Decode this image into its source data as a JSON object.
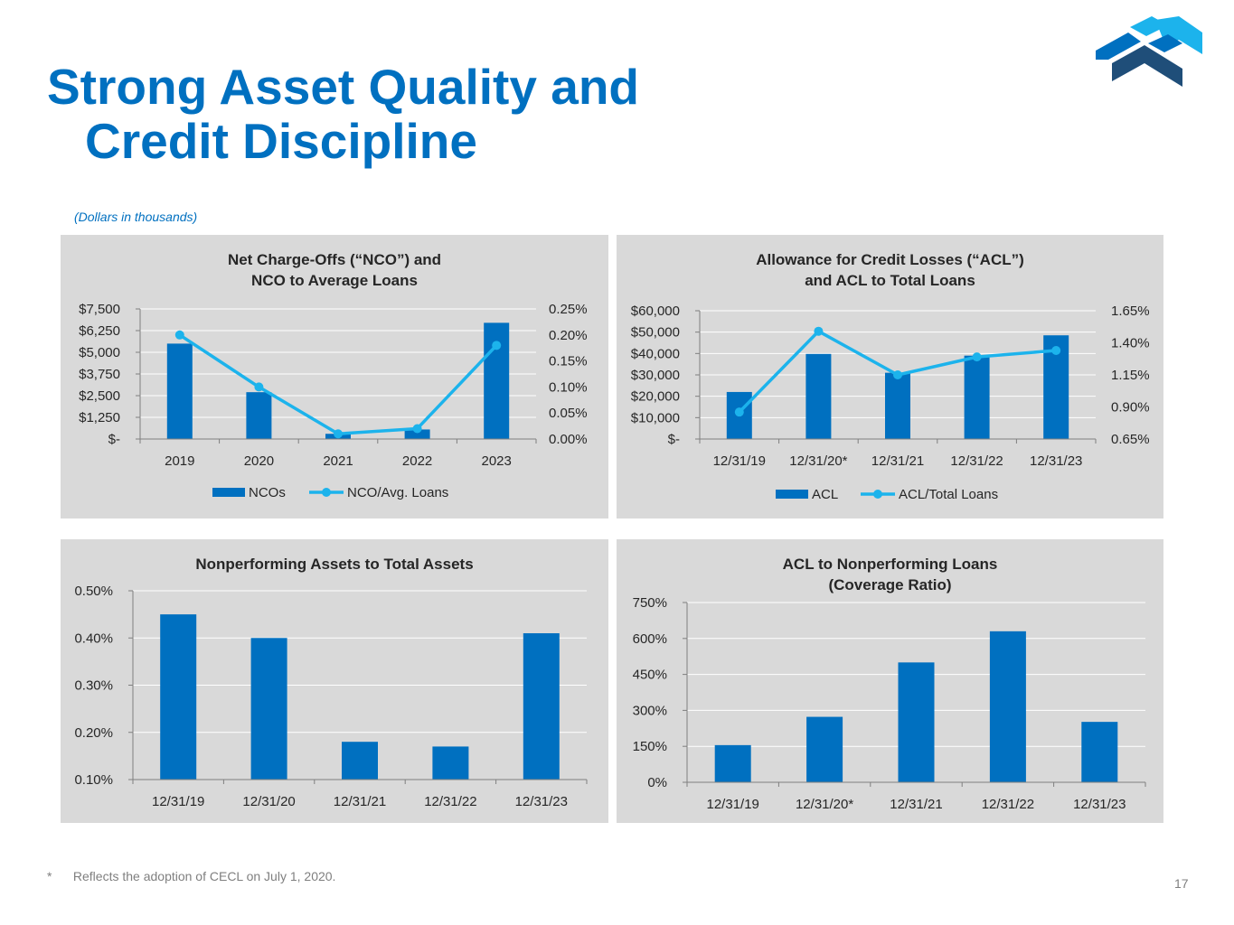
{
  "slide": {
    "title_line1": "Strong Asset Quality and",
    "title_line2": "Credit Discipline",
    "subtitle": "(Dollars in thousands)",
    "footnote_mark": "*",
    "footnote": "Reflects the adoption of CECL on July 1, 2020.",
    "page_number": "17",
    "logo": "chevron-arrows-logo-icon"
  },
  "colors": {
    "title": "#0070c0",
    "bar": "#0070c0",
    "line": "#1cb3ec",
    "panel_bg": "#d9d9d9",
    "grid": "#ffffff",
    "axis": "#7f7f7f",
    "text": "#262626",
    "muted": "#7f7f7f"
  },
  "chart_data": [
    {
      "type": "bar",
      "combo": "bar+line",
      "title_lines": [
        "Net Charge-Offs (“NCO”) and",
        "NCO to Average Loans"
      ],
      "categories": [
        "2019",
        "2020",
        "2021",
        "2022",
        "2023"
      ],
      "series": [
        {
          "name": "NCOs",
          "type": "bar",
          "axis": "left",
          "values": [
            5500,
            2700,
            300,
            550,
            6700
          ]
        },
        {
          "name": "NCO/Avg. Loans",
          "type": "line",
          "axis": "right",
          "values": [
            0.2,
            0.1,
            0.01,
            0.02,
            0.18
          ]
        }
      ],
      "y_left": {
        "min": 0,
        "max": 7500,
        "ticks": [
          0,
          1250,
          2500,
          3750,
          5000,
          6250,
          7500
        ],
        "tick_labels": [
          "$-",
          "$1,250",
          "$2,500",
          "$3,750",
          "$5,000",
          "$6,250",
          "$7,500"
        ]
      },
      "y_right": {
        "min": 0,
        "max": 0.25,
        "ticks": [
          0,
          0.05,
          0.1,
          0.15,
          0.2,
          0.25
        ],
        "tick_labels": [
          "0.00%",
          "0.05%",
          "0.10%",
          "0.15%",
          "0.20%",
          "0.25%"
        ]
      },
      "grid": true,
      "legend": "bottom"
    },
    {
      "type": "bar",
      "combo": "bar+line",
      "title_lines": [
        "Allowance for Credit Losses (“ACL”)",
        "and ACL to Total Loans"
      ],
      "categories": [
        "12/31/19",
        "12/31/20*",
        "12/31/21",
        "12/31/22",
        "12/31/23"
      ],
      "series": [
        {
          "name": "ACL",
          "type": "bar",
          "axis": "left",
          "values": [
            22000,
            39800,
            31000,
            39000,
            48500
          ]
        },
        {
          "name": "ACL/Total Loans",
          "type": "line",
          "axis": "right",
          "values": [
            0.86,
            1.49,
            1.15,
            1.29,
            1.34
          ]
        }
      ],
      "y_left": {
        "min": 0,
        "max": 60000,
        "ticks": [
          0,
          10000,
          20000,
          30000,
          40000,
          50000,
          60000
        ],
        "tick_labels": [
          "$-",
          "$10,000",
          "$20,000",
          "$30,000",
          "$40,000",
          "$50,000",
          "$60,000"
        ]
      },
      "y_right": {
        "min": 0.65,
        "max": 1.65,
        "ticks": [
          0.65,
          0.9,
          1.15,
          1.4,
          1.65
        ],
        "tick_labels": [
          "0.65%",
          "0.90%",
          "1.15%",
          "1.40%",
          "1.65%"
        ]
      },
      "grid": true,
      "legend": "bottom"
    },
    {
      "type": "bar",
      "title_lines": [
        "Nonperforming Assets to Total Assets"
      ],
      "categories": [
        "12/31/19",
        "12/31/20",
        "12/31/21",
        "12/31/22",
        "12/31/23"
      ],
      "series": [
        {
          "name": "Nonperforming Assets to Total Assets",
          "type": "bar",
          "axis": "left",
          "values": [
            0.45,
            0.4,
            0.18,
            0.17,
            0.41
          ]
        }
      ],
      "y_left": {
        "min": 0.1,
        "max": 0.5,
        "ticks": [
          0.1,
          0.2,
          0.3,
          0.4,
          0.5
        ],
        "tick_labels": [
          "0.10%",
          "0.20%",
          "0.30%",
          "0.40%",
          "0.50%"
        ]
      },
      "grid": true,
      "legend": "none"
    },
    {
      "type": "bar",
      "title_lines": [
        "ACL to Nonperforming Loans",
        "(Coverage Ratio)"
      ],
      "categories": [
        "12/31/19",
        "12/31/20*",
        "12/31/21",
        "12/31/22",
        "12/31/23"
      ],
      "series": [
        {
          "name": "ACL to Nonperforming Loans",
          "type": "bar",
          "axis": "left",
          "values": [
            155,
            273,
            500,
            630,
            252
          ]
        }
      ],
      "y_left": {
        "min": 0,
        "max": 750,
        "ticks": [
          0,
          150,
          300,
          450,
          600,
          750
        ],
        "tick_labels": [
          "0%",
          "150%",
          "300%",
          "450%",
          "600%",
          "750%"
        ]
      },
      "grid": true,
      "legend": "none"
    }
  ]
}
